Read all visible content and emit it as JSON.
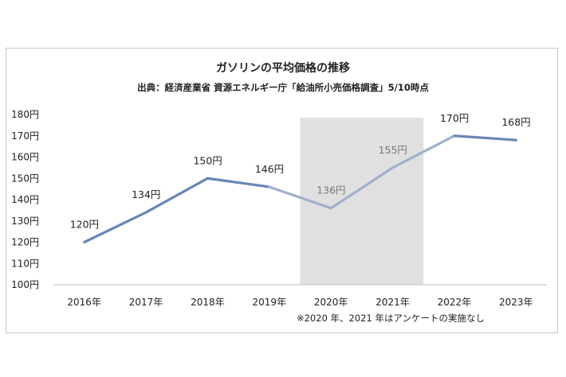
{
  "chart_data": {
    "type": "line",
    "title": "ガソリンの平均価格の推移",
    "subtitle": "出典：経済産業省 資源エネルギー庁「給油所小売価格調査」5/10時点",
    "xlabel": "",
    "ylabel": "",
    "categories": [
      "2016年",
      "2017年",
      "2018年",
      "2019年",
      "2020年",
      "2021年",
      "2022年",
      "2023年"
    ],
    "series": [
      {
        "values": [
          120,
          134,
          150,
          146,
          136,
          155,
          170,
          168
        ]
      }
    ],
    "data_labels": [
      "120円",
      "134円",
      "150円",
      "146円",
      "136円",
      "155円",
      "170円",
      "168円"
    ],
    "y_ticks": [
      "100円",
      "110円",
      "120円",
      "130円",
      "140円",
      "150円",
      "160円",
      "170円",
      "180円"
    ],
    "ylim": [
      100,
      180
    ],
    "highlight_categories": [
      "2020年",
      "2021年"
    ],
    "grid": false,
    "note": "※2020 年、2021 年はアンケートの実施なし",
    "colors": {
      "line": "#6a86b6",
      "line_muted": "#9fb0cc",
      "highlight": "#e0e0e0",
      "axis": "#bfbfbf"
    }
  }
}
